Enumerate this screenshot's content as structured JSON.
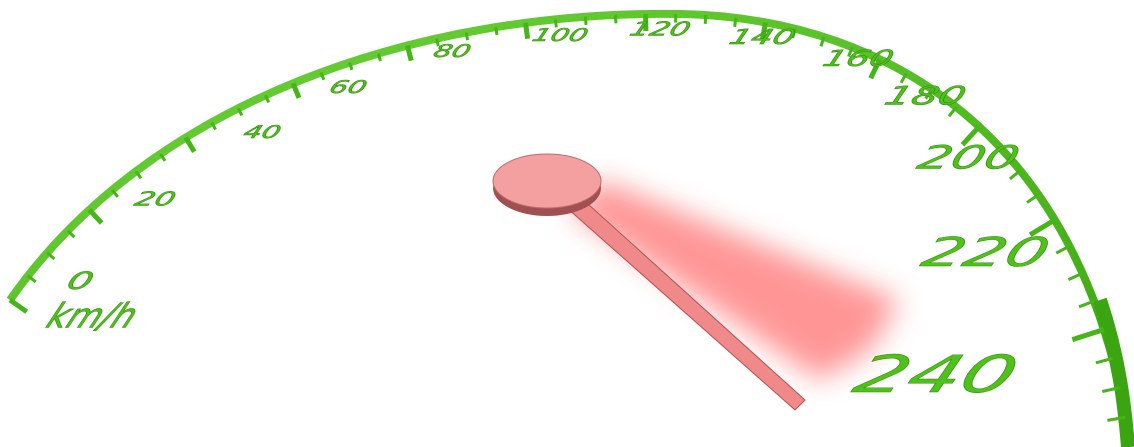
{
  "gauge": {
    "labels": [
      "0",
      "20",
      "40",
      "60",
      "80",
      "100",
      "120",
      "140",
      "160",
      "180",
      "200",
      "220",
      "240"
    ],
    "unit": "km/h"
  }
}
